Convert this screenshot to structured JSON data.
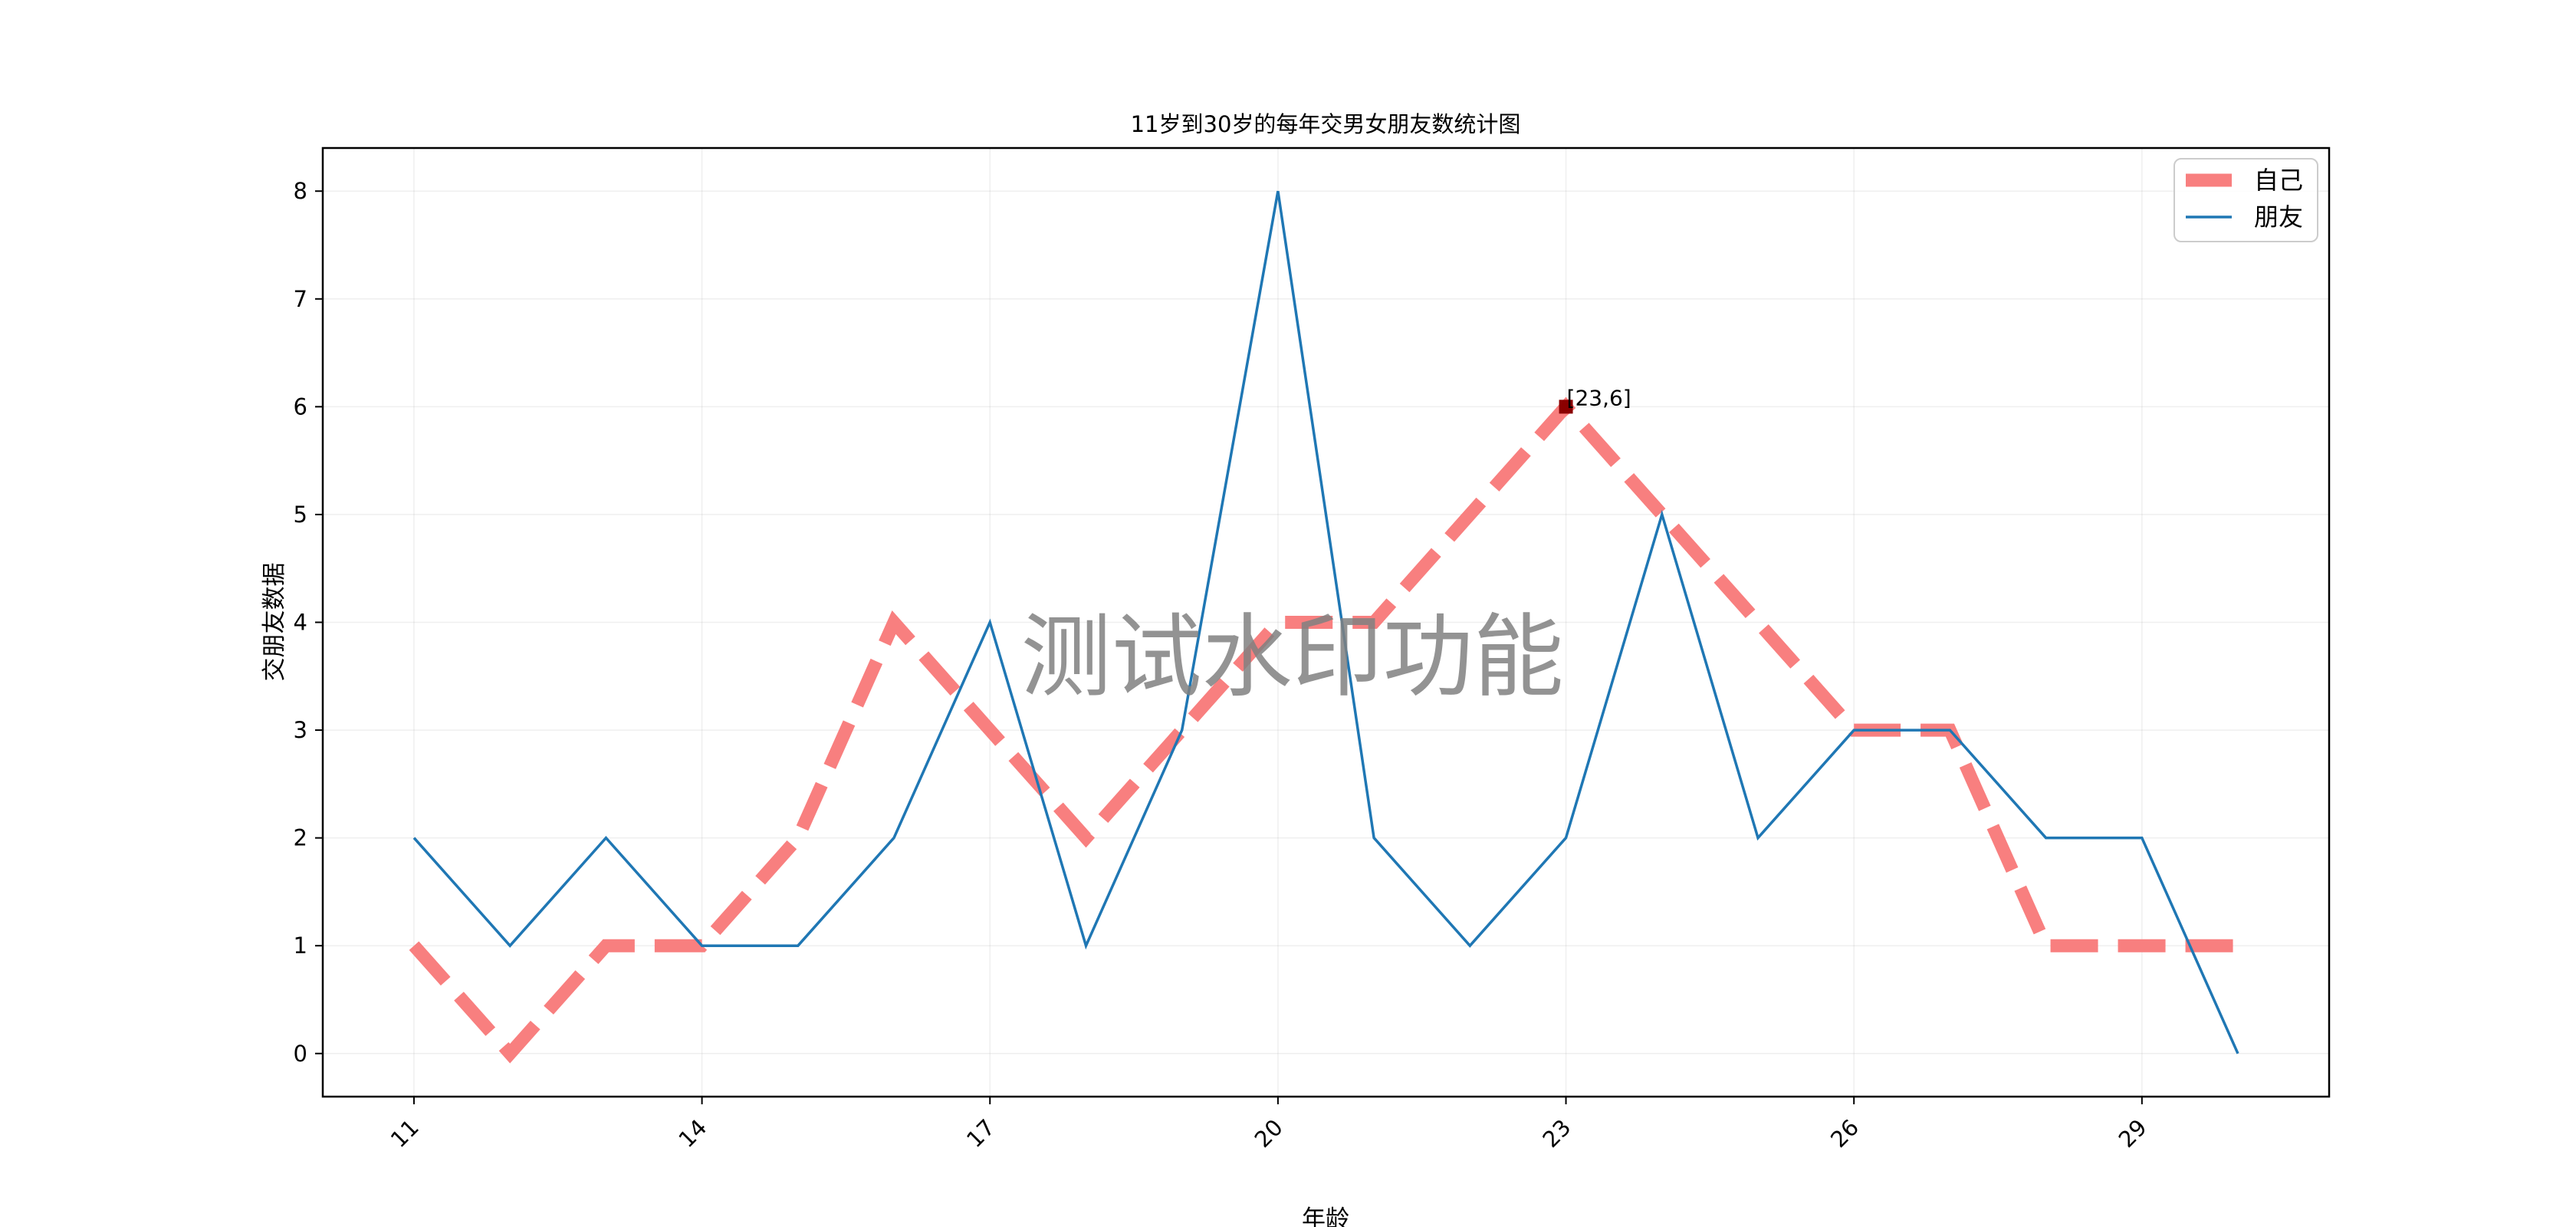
{
  "chart_data": {
    "type": "line",
    "title": "11岁到30岁的每年交男女朋友数统计图",
    "xlabel": "年龄",
    "ylabel": "交朋友数据",
    "x": [
      11,
      12,
      13,
      14,
      15,
      16,
      17,
      18,
      19,
      20,
      21,
      22,
      23,
      24,
      25,
      26,
      27,
      28,
      29,
      30
    ],
    "xticks": [
      11,
      14,
      17,
      20,
      23,
      26,
      29
    ],
    "xtick_labels": [
      "11",
      "14",
      "17",
      "20",
      "23",
      "26",
      "29"
    ],
    "yticks": [
      0,
      1,
      2,
      3,
      4,
      5,
      6,
      7,
      8
    ],
    "ytick_labels": [
      "0",
      "1",
      "2",
      "3",
      "4",
      "5",
      "6",
      "7",
      "8"
    ],
    "xlim": [
      10.05,
      30.95
    ],
    "ylim": [
      -0.4,
      8.4
    ],
    "grid": true,
    "legend_position": "top-right",
    "series": [
      {
        "name": "自己",
        "color": "#f87f7f",
        "style": "dashed",
        "values": [
          1,
          0,
          1,
          1,
          2,
          4,
          3,
          2,
          3,
          4,
          4,
          5,
          6,
          5,
          4,
          3,
          3,
          1,
          1,
          1
        ]
      },
      {
        "name": "朋友",
        "color": "#1f77b4",
        "style": "solid",
        "values": [
          2,
          1,
          2,
          1,
          1,
          2,
          4,
          1,
          3,
          8,
          2,
          1,
          2,
          5,
          2,
          3,
          3,
          2,
          2,
          0
        ]
      }
    ],
    "annotation": {
      "text": "[23,6]",
      "x": 23,
      "y": 6,
      "marker_color": "#8b0000"
    },
    "watermark": {
      "text": "测试水印功能",
      "color": "#808080"
    }
  }
}
